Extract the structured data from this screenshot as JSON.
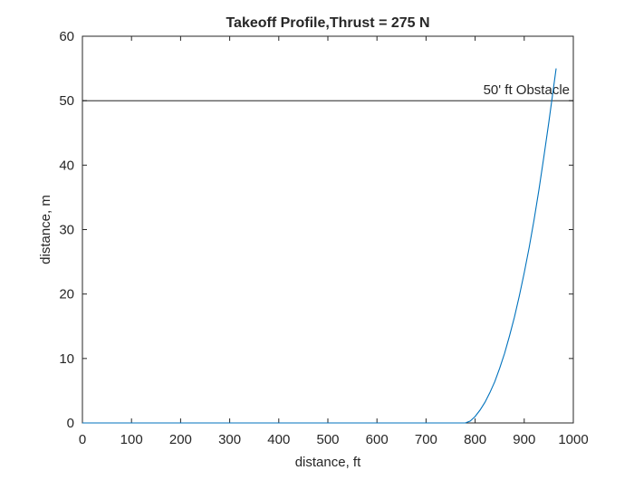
{
  "chart_data": {
    "type": "line",
    "title": "Takeoff Profile,Thrust = 275 N",
    "xlabel": "distance, ft",
    "ylabel": "distance, m",
    "xlim": [
      0,
      1000
    ],
    "ylim": [
      0,
      60
    ],
    "xticks": [
      0,
      100,
      200,
      300,
      400,
      500,
      600,
      700,
      800,
      900,
      1000
    ],
    "yticks": [
      0,
      10,
      20,
      30,
      40,
      50,
      60
    ],
    "xtick_labels": [
      "0",
      "100",
      "200",
      "300",
      "400",
      "500",
      "600",
      "700",
      "800",
      "900",
      "1000"
    ],
    "ytick_labels": [
      "0",
      "10",
      "20",
      "30",
      "40",
      "50",
      "60"
    ],
    "grid": false,
    "series": [
      {
        "color": "#0072BD",
        "x": [
          0,
          780,
          790,
          800,
          810,
          820,
          830,
          840,
          850,
          860,
          870,
          880,
          890,
          900,
          910,
          920,
          930,
          940,
          950,
          960,
          965
        ],
        "y": [
          0,
          0,
          0.3,
          1.0,
          2.0,
          3.2,
          4.7,
          6.4,
          8.5,
          10.8,
          13.5,
          16.4,
          19.7,
          23.3,
          27.2,
          31.5,
          36.2,
          41.3,
          46.6,
          52.2,
          55.0
        ]
      }
    ],
    "reference_lines": [
      {
        "orientation": "horizontal",
        "y": 50,
        "color": "#000000",
        "label": "50' ft Obstacle"
      }
    ]
  }
}
